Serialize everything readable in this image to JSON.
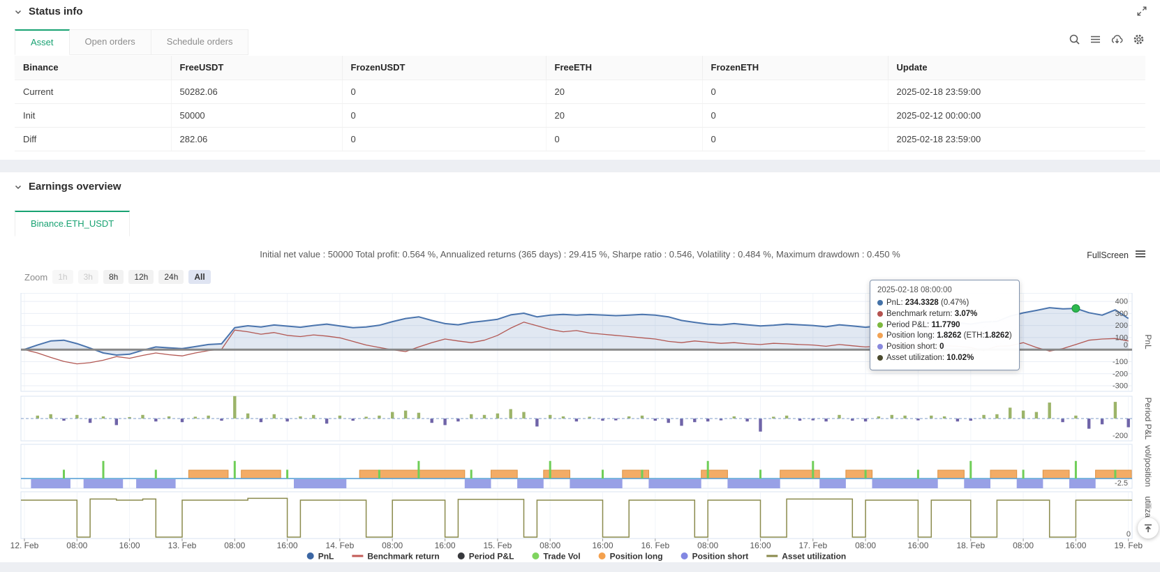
{
  "status": {
    "title": "Status info",
    "tabs": [
      "Asset",
      "Open orders",
      "Schedule orders"
    ],
    "active_tab": "Asset",
    "icons": [
      "fullscreen-expand-icon",
      "search-icon",
      "menu-icon",
      "cloud-download-icon",
      "settings-gear-icon"
    ],
    "table": {
      "columns": [
        "Binance",
        "FreeUSDT",
        "FrozenUSDT",
        "FreeETH",
        "FrozenETH",
        "Update"
      ],
      "rows": [
        {
          "cells": [
            {
              "v": "Current",
              "cls": "link"
            },
            {
              "v": "50282.06"
            },
            {
              "v": "0"
            },
            {
              "v": "20"
            },
            {
              "v": "0"
            },
            {
              "v": "2025-02-18 23:59:00"
            }
          ]
        },
        {
          "cells": [
            {
              "v": "Init"
            },
            {
              "v": "50000"
            },
            {
              "v": "0"
            },
            {
              "v": "20"
            },
            {
              "v": "0"
            },
            {
              "v": "2025-02-12 00:00:00"
            }
          ]
        },
        {
          "cells": [
            {
              "v": "Diff",
              "cls": "red"
            },
            {
              "v": "282.06",
              "cls": "red"
            },
            {
              "v": "0"
            },
            {
              "v": "0",
              "cls": "red"
            },
            {
              "v": "0"
            },
            {
              "v": "2025-02-18 23:59:00"
            }
          ]
        }
      ]
    }
  },
  "earnings": {
    "title": "Earnings overview",
    "tab": "Binance.ETH_USDT",
    "summary": "Initial net value : 50000 Total profit: 0.564 %, Annualized returns (365 days) : 29.415 %, Sharpe ratio : 0.546, Volatility : 0.484 %, Maximum drawdown : 0.450 %",
    "fullscreen_label": "FullScreen",
    "icons": [
      "chart-menu-icon",
      "back-to-top-icon"
    ],
    "zoom": {
      "label": "Zoom",
      "buttons": [
        {
          "label": "1h",
          "state": "disabled"
        },
        {
          "label": "3h",
          "state": "disabled"
        },
        {
          "label": "8h",
          "state": ""
        },
        {
          "label": "12h",
          "state": ""
        },
        {
          "label": "24h",
          "state": ""
        },
        {
          "label": "All",
          "state": "active"
        }
      ]
    }
  },
  "tooltip": {
    "title": "2025-02-18 08:00:00",
    "rows": [
      {
        "color": "#4472a8",
        "segs": [
          {
            "t": "PnL: "
          },
          {
            "t": "234.3328",
            "b": true
          },
          {
            "t": " (0.47%)"
          }
        ]
      },
      {
        "color": "#b5524f",
        "segs": [
          {
            "t": "Benchmark return: "
          },
          {
            "t": "3.07%",
            "b": true
          }
        ]
      },
      {
        "color": "#7cb83d",
        "segs": [
          {
            "t": "Period P&L: "
          },
          {
            "t": "11.7790",
            "b": true
          }
        ]
      },
      {
        "color": "#f2a254",
        "segs": [
          {
            "t": "Position long: "
          },
          {
            "t": "1.8262",
            "b": true
          },
          {
            "t": " (ETH:"
          },
          {
            "t": "1.8262",
            "b": true
          },
          {
            "t": ")"
          }
        ]
      },
      {
        "color": "#8888dd",
        "segs": [
          {
            "t": "Position short: "
          },
          {
            "t": "0",
            "b": true
          }
        ]
      },
      {
        "color": "#4a4a2e",
        "segs": [
          {
            "t": "Asset utilization: "
          },
          {
            "t": "10.02%",
            "b": true
          }
        ]
      }
    ]
  },
  "colors": {
    "accent_green": "#18a272",
    "link_blue": "#4ba0f0",
    "negative_red": "#e84c4c",
    "zoom_active_bg": "#dfe4f2"
  },
  "chart_data": {
    "type": "multi-panel-timeseries",
    "x_tick_labels": [
      "12. Feb",
      "08:00",
      "16:00",
      "13. Feb",
      "08:00",
      "16:00",
      "14. Feb",
      "08:00",
      "16:00",
      "15. Feb",
      "08:00",
      "16:00",
      "16. Feb",
      "08:00",
      "16:00",
      "17. Feb",
      "08:00",
      "16:00",
      "18. Feb",
      "08:00",
      "16:00",
      "19. Feb"
    ],
    "points_per_day": 12,
    "legend": [
      {
        "label": "PnL",
        "marker": "circle",
        "color": "#3b66a3"
      },
      {
        "label": "Benchmark return",
        "marker": "line",
        "color": "#c25a56"
      },
      {
        "label": "Period P&L",
        "marker": "circle",
        "color": "#37383c"
      },
      {
        "label": "Trade Vol",
        "marker": "circle",
        "color": "#7fd45f"
      },
      {
        "label": "Position long",
        "marker": "circle",
        "color": "#f4a14e"
      },
      {
        "label": "Position short",
        "marker": "circle",
        "color": "#8287e2"
      },
      {
        "label": "Asset utilization",
        "marker": "line",
        "color": "#8a8a4c"
      }
    ],
    "panels": [
      {
        "name": "PnL",
        "ylabel": "PnL",
        "yticks": [
          400,
          300,
          200,
          100,
          0,
          -100,
          -200,
          -300
        ],
        "marker": {
          "x_index": 80,
          "value": 342,
          "color": "#2db84d"
        },
        "series": [
          {
            "name": "PnL",
            "type": "area-line",
            "color": "#4a74ad",
            "fill": "rgba(106,140,190,0.20)",
            "values": [
              2,
              38,
              72,
              78,
              50,
              12,
              -28,
              -45,
              -38,
              -5,
              22,
              15,
              8,
              25,
              42,
              48,
              182,
              198,
              188,
              204,
              195,
              186,
              200,
              212,
              196,
              182,
              188,
              202,
              232,
              258,
              272,
              242,
              216,
              206,
              226,
              238,
              252,
              288,
              302,
              272,
              286,
              292,
              286,
              291,
              287,
              282,
              286,
              292,
              286,
              272,
              242,
              226,
              212,
              206,
              216,
              206,
              196,
              202,
              212,
              206,
              200,
              190,
              206,
              196,
              186,
              196,
              212,
              222,
              216,
              226,
              232,
              222,
              212,
              228,
              234,
              278,
              305,
              325,
              348,
              338,
              342,
              306,
              286,
              330,
              258
            ]
          },
          {
            "name": "Benchmark return",
            "type": "line",
            "color": "#b25752",
            "values": [
              0,
              -28,
              -65,
              -98,
              -118,
              -108,
              -88,
              -58,
              -72,
              -48,
              -28,
              -42,
              -52,
              -28,
              -8,
              2,
              162,
              148,
              128,
              142,
              118,
              108,
              122,
              112,
              98,
              68,
              38,
              18,
              -2,
              -16,
              22,
              58,
              88,
              72,
              58,
              78,
              118,
              178,
              228,
              198,
              168,
              148,
              158,
              138,
              128,
              118,
              108,
              98,
              88,
              68,
              58,
              72,
              62,
              52,
              58,
              48,
              42,
              52,
              48,
              42,
              38,
              28,
              42,
              32,
              22,
              28,
              38,
              32,
              28,
              22,
              32,
              28,
              18,
              -8,
              28,
              31,
              58,
              18,
              -12,
              8,
              42,
              78,
              88,
              92,
              72
            ]
          }
        ]
      },
      {
        "name": "Period P&L",
        "ylabel": "Period P&L",
        "ymin_label": "-200",
        "series": [
          {
            "name": "Period P&L",
            "type": "bar",
            "pos_color": "#9cb469",
            "neg_color": "#6f64a8",
            "values": [
              0,
              8,
              12,
              -6,
              10,
              -12,
              6,
              -18,
              4,
              10,
              -8,
              6,
              -10,
              5,
              8,
              -6,
              62,
              14,
              -10,
              12,
              -8,
              6,
              10,
              -14,
              8,
              -6,
              5,
              8,
              18,
              22,
              16,
              -12,
              -18,
              -8,
              12,
              10,
              14,
              26,
              18,
              -22,
              10,
              6,
              -8,
              5,
              -6,
              -5,
              6,
              8,
              -6,
              -12,
              -20,
              -10,
              -8,
              -5,
              6,
              -8,
              -36,
              5,
              8,
              -6,
              -5,
              -8,
              10,
              -6,
              -8,
              6,
              10,
              8,
              -5,
              8,
              6,
              -8,
              -6,
              10,
              12,
              30,
              22,
              18,
              44,
              -10,
              8,
              -28,
              -16,
              46,
              -24
            ]
          }
        ]
      },
      {
        "name": "vol/position",
        "ylabel": "vol/position",
        "ymin_label": "-2.5",
        "series": [
          {
            "name": "Trade Vol",
            "type": "spike",
            "color": "#6fce58",
            "values": [
              0,
              0,
              0,
              1.8,
              0,
              0,
              3.6,
              0,
              0,
              0,
              1.8,
              0,
              0,
              0,
              0,
              0,
              3.6,
              0,
              0,
              0,
              1.8,
              0,
              0,
              0,
              0,
              0,
              0,
              1.8,
              0,
              0,
              3.6,
              0,
              0,
              0,
              1.8,
              0,
              0,
              0,
              0,
              0,
              3.6,
              0,
              0,
              0,
              1.8,
              0,
              0,
              1.8,
              0,
              0,
              0,
              0,
              3.6,
              0,
              0,
              0,
              1.8,
              0,
              0,
              0,
              3.6,
              0,
              0,
              0,
              1.8,
              0,
              0,
              0,
              1.8,
              0,
              0,
              0,
              3.6,
              0,
              0,
              0,
              1.8,
              0,
              0,
              0,
              3.6,
              0,
              0,
              1.8,
              0
            ]
          },
          {
            "name": "Position long",
            "type": "step-block",
            "color": "#f3ac66",
            "border": "#dd9242",
            "values": [
              0,
              0,
              0,
              0,
              0,
              0,
              0,
              0,
              0,
              0,
              0,
              0,
              0,
              1.8,
              1.8,
              1.8,
              0,
              1.8,
              1.8,
              1.8,
              0,
              0,
              0,
              0,
              0,
              0,
              1.8,
              1.8,
              1.8,
              1.8,
              1.8,
              1.8,
              1.8,
              1.8,
              0,
              0,
              1.8,
              1.8,
              0,
              0,
              1.8,
              1.8,
              0,
              0,
              0,
              0,
              1.8,
              1.8,
              0,
              0,
              0,
              0,
              1.8,
              1.8,
              0,
              0,
              0,
              0,
              1.8,
              1.8,
              1.8,
              0,
              0,
              1.8,
              1.8,
              0,
              0,
              0,
              0,
              0,
              1.8,
              1.8,
              0,
              0,
              1.8,
              1.8,
              0,
              0,
              1.8,
              1.8,
              0,
              0,
              1.8,
              1.8,
              1.8
            ]
          },
          {
            "name": "Position short",
            "type": "step-block",
            "color": "#98a0e6",
            "values": [
              0,
              1.8,
              1.8,
              1.8,
              0,
              1.8,
              1.8,
              1.8,
              0,
              1.8,
              1.8,
              1.8,
              0,
              0,
              0,
              0,
              0,
              0,
              0,
              0,
              0,
              1.8,
              1.8,
              1.8,
              1.8,
              0,
              0,
              0,
              0,
              0,
              0,
              0,
              0,
              0,
              1.8,
              1.8,
              0,
              0,
              1.8,
              1.8,
              0,
              0,
              1.8,
              1.8,
              1.8,
              1.8,
              0,
              0,
              1.8,
              1.8,
              1.8,
              1.8,
              0,
              0,
              1.8,
              1.8,
              1.8,
              1.8,
              0,
              0,
              0,
              1.8,
              1.8,
              0,
              0,
              1.8,
              1.8,
              1.8,
              1.8,
              1.8,
              0,
              0,
              1.8,
              1.8,
              0,
              0,
              1.8,
              1.8,
              0,
              0,
              1.8,
              1.8,
              0,
              0,
              0
            ]
          }
        ]
      },
      {
        "name": "utilization",
        "ylabel": "utilizatio...",
        "ymin_label": "0",
        "series": [
          {
            "name": "Asset utilization",
            "type": "step-line",
            "color": "#8a8a4c",
            "values": [
              10,
              10,
              10,
              10,
              0,
              10.3,
              10.3,
              10,
              10,
              10.3,
              0,
              0,
              10,
              10,
              10,
              10,
              10,
              10.5,
              10.5,
              10.5,
              0,
              10,
              10,
              10,
              10,
              10,
              0,
              0,
              10,
              10,
              10,
              10,
              0,
              10.2,
              10.2,
              10.2,
              10.2,
              10.2,
              0,
              10,
              10,
              10,
              10,
              10,
              0,
              0,
              10,
              10,
              10,
              10,
              10,
              0,
              10,
              10,
              10,
              10,
              0,
              0,
              10.3,
              10.3,
              10.3,
              10.3,
              10.3,
              0,
              10,
              10,
              10,
              10,
              0,
              10,
              10,
              10,
              0,
              0,
              10,
              10,
              10,
              10,
              0,
              0,
              10,
              10,
              10,
              10,
              10
            ]
          }
        ]
      }
    ]
  }
}
